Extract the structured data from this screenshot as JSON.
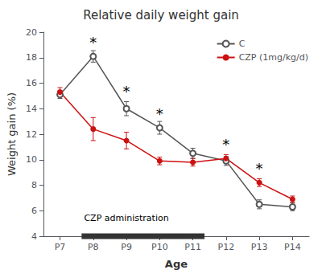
{
  "chart_data": {
    "type": "line",
    "title": "Relative daily weight gain",
    "xlabel": "Age",
    "ylabel": "Weight gain (%)",
    "x": [
      7,
      8,
      9,
      10,
      11,
      12,
      13,
      14
    ],
    "xlim": [
      6.5,
      14.5
    ],
    "xticks": [
      {
        "value": 7,
        "label": "P7"
      },
      {
        "value": 8,
        "label": "P8"
      },
      {
        "value": 9,
        "label": "P9"
      },
      {
        "value": 10,
        "label": "P10"
      },
      {
        "value": 11,
        "label": "P11"
      },
      {
        "value": 12,
        "label": "P12"
      },
      {
        "value": 13,
        "label": "P13"
      },
      {
        "value": 14,
        "label": "P14"
      }
    ],
    "ylim": [
      4,
      20
    ],
    "yticks": [
      4,
      6,
      8,
      10,
      12,
      14,
      16,
      18,
      20
    ],
    "series": [
      {
        "name": "C",
        "color": "#555555",
        "marker": "open_circle",
        "values": [
          15.1,
          18.1,
          14.0,
          12.5,
          10.5,
          9.9,
          6.5,
          6.3
        ],
        "errors": [
          0.3,
          0.45,
          0.55,
          0.5,
          0.4,
          0.35,
          0.35,
          0.3
        ]
      },
      {
        "name": "CZP (1mg/kg/d)",
        "color": "#cc1111",
        "marker": "circle",
        "values": [
          15.3,
          12.4,
          11.5,
          9.9,
          9.8,
          10.1,
          8.2,
          6.9
        ],
        "errors": [
          0.35,
          0.9,
          0.65,
          0.3,
          0.3,
          0.3,
          0.3,
          0.25
        ]
      }
    ],
    "annotations": [
      {
        "text": "*",
        "x": 8,
        "y": 19.0
      },
      {
        "text": "*",
        "x": 9,
        "y": 15.2
      },
      {
        "text": "*",
        "x": 10,
        "y": 13.4
      },
      {
        "text": "*",
        "x": 12,
        "y": 11.0
      },
      {
        "text": "*",
        "x": 13,
        "y": 9.15
      },
      {
        "text": "CZP administration",
        "x": 9.0,
        "y": 5.1
      }
    ],
    "period": {
      "x": [
        7.65,
        11.35
      ],
      "y": 4.0
    },
    "legend": "upper right",
    "grid": false
  }
}
